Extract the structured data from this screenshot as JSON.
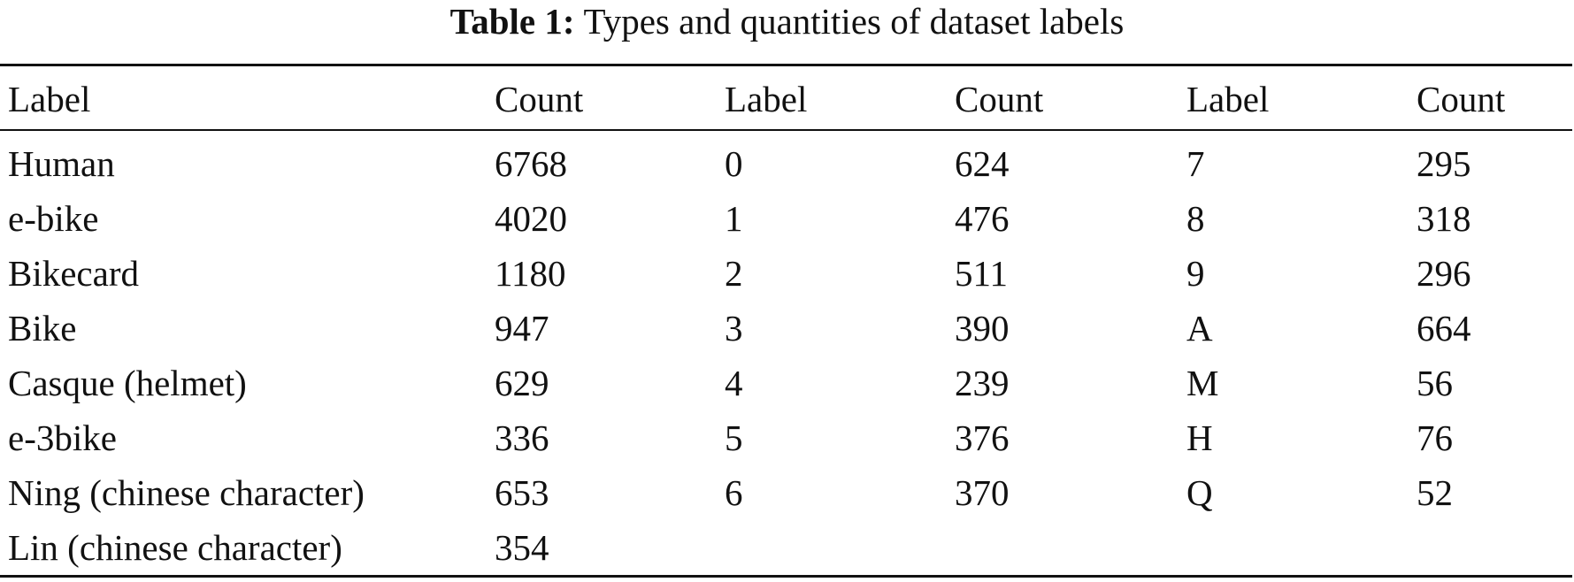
{
  "table": {
    "caption_label": "Table 1:",
    "caption": "Types and quantities of dataset labels",
    "header": [
      "Label",
      "Count",
      "Label",
      "Count",
      "Label",
      "Count"
    ],
    "rows": [
      [
        "Human",
        6768,
        "0",
        624,
        "7",
        295
      ],
      [
        "e-bike",
        4020,
        "1",
        476,
        "8",
        318
      ],
      [
        "Bikecard",
        1180,
        "2",
        511,
        "9",
        296
      ],
      [
        "Bike",
        947,
        "3",
        390,
        "A",
        664
      ],
      [
        "Casque (helmet)",
        629,
        "4",
        239,
        "M",
        56
      ],
      [
        "e-3bike",
        336,
        "5",
        376,
        "H",
        76
      ],
      [
        "Ning (chinese character)",
        653,
        "6",
        370,
        "Q",
        52
      ],
      [
        "Lin (chinese character)",
        354
      ]
    ]
  }
}
